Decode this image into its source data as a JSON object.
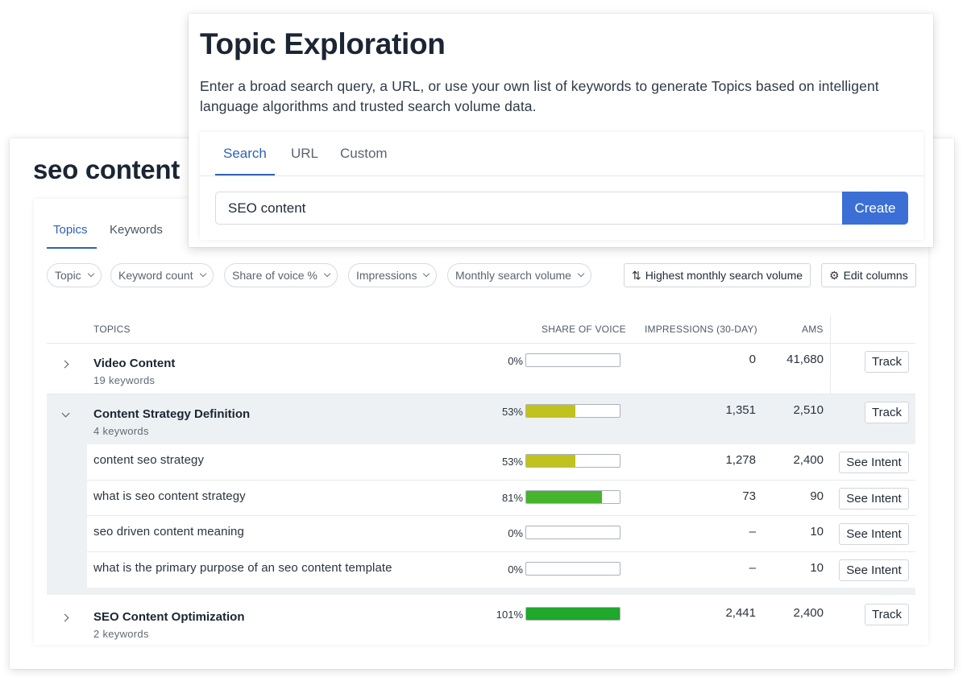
{
  "colors": {
    "accent": "#2f62b5",
    "create_button": "#3b6fd6",
    "bar_yellow": "#c2c21e",
    "bar_green_mid": "#44b52d",
    "bar_green_full": "#1fa82c",
    "expanded_row_bg": "#eef1f4"
  },
  "back": {
    "title": "seo content",
    "tabs": [
      {
        "label": "Topics",
        "active": true
      },
      {
        "label": "Keywords",
        "active": false
      }
    ],
    "filters": [
      {
        "label": "Topic",
        "icon": "chevron-down-icon"
      },
      {
        "label": "Keyword count",
        "icon": "chevron-down-icon"
      },
      {
        "label": "Share of voice %",
        "icon": "chevron-down-icon"
      },
      {
        "label": "Impressions",
        "icon": "chevron-down-icon"
      },
      {
        "label": "Monthly search volume",
        "icon": "chevron-down-icon"
      }
    ],
    "sort_button": {
      "label": "Highest monthly search volume",
      "icon": "sort-arrows-icon"
    },
    "edit_columns_button": {
      "label": "Edit columns",
      "icon": "gear-icon"
    },
    "columns": {
      "topics": "TOPICS",
      "share_of_voice": "SHARE OF VOICE",
      "impressions": "IMPRESSIONS (30-DAY)",
      "ams": "AMS"
    },
    "rows": [
      {
        "name": "Video Content",
        "sub": "19 keywords",
        "sov": "0%",
        "sov_fraction": 0,
        "impressions": "0",
        "ams": "41,680",
        "action": "Track",
        "expanded": false
      },
      {
        "name": "Content Strategy Definition",
        "sub": "4 keywords",
        "sov": "53%",
        "sov_fraction": 0.53,
        "impressions": "1,351",
        "ams": "2,510",
        "action": "Track",
        "expanded": true
      },
      {
        "name": "SEO Content Optimization",
        "sub": "2 keywords",
        "sov": "101%",
        "sov_fraction": 1.0,
        "impressions": "2,441",
        "ams": "2,400",
        "action": "Track",
        "expanded": false
      }
    ],
    "keywords": [
      {
        "name": "content seo strategy",
        "sov": "53%",
        "sov_fraction": 0.53,
        "impressions": "1,278",
        "ams": "2,400",
        "action": "See Intent"
      },
      {
        "name": "what is seo content strategy",
        "sov": "81%",
        "sov_fraction": 0.81,
        "impressions": "73",
        "ams": "90",
        "action": "See Intent"
      },
      {
        "name": "seo driven content meaning",
        "sov": "0%",
        "sov_fraction": 0,
        "impressions": "–",
        "ams": "10",
        "action": "See Intent"
      },
      {
        "name": "what is the primary purpose of an seo content template",
        "sov": "0%",
        "sov_fraction": 0,
        "impressions": "–",
        "ams": "10",
        "action": "See Intent"
      }
    ]
  },
  "front": {
    "title": "Topic Exploration",
    "description": "Enter a broad search query, a URL, or use your own list of keywords to generate Topics based on intelligent language algorithms and trusted search volume data.",
    "tabs": [
      {
        "label": "Search",
        "active": true
      },
      {
        "label": "URL",
        "active": false
      },
      {
        "label": "Custom",
        "active": false
      }
    ],
    "search_value": "SEO content",
    "create_label": "Create"
  }
}
